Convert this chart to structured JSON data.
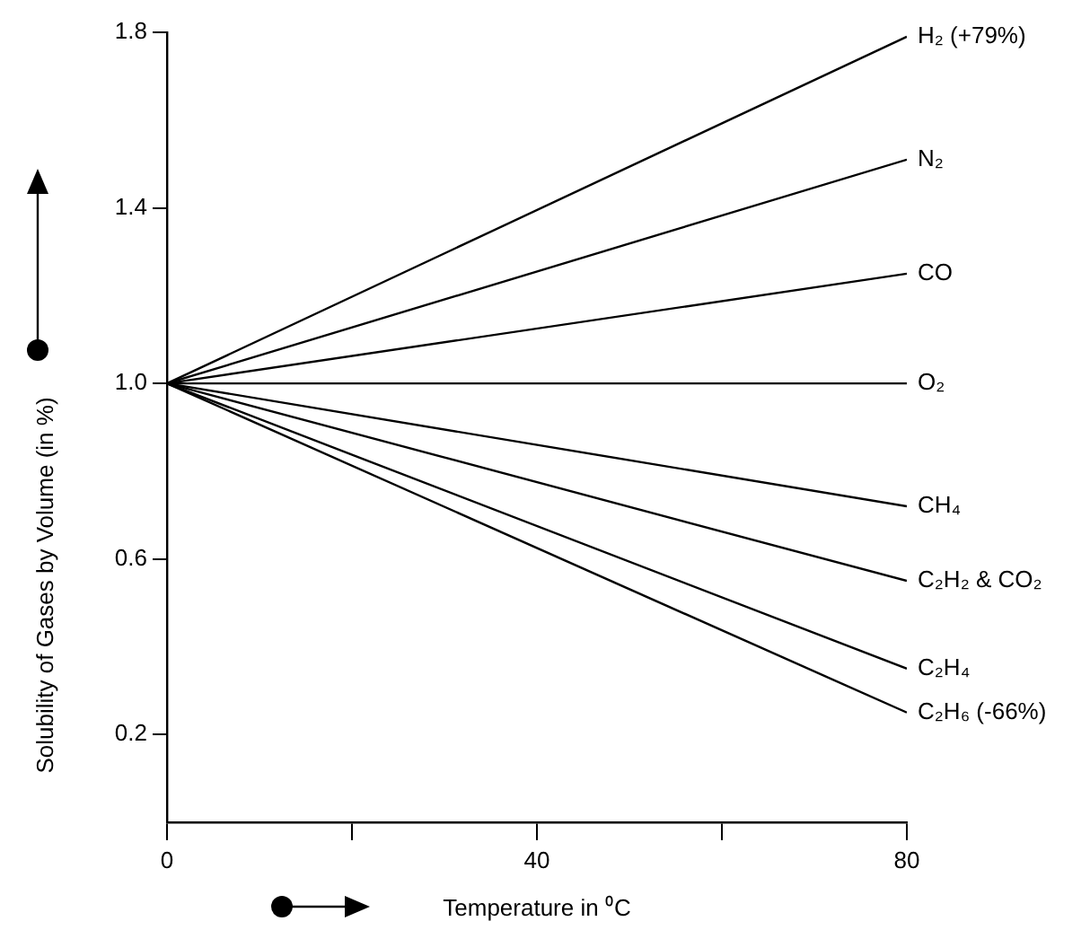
{
  "chart_data": {
    "type": "line",
    "xlabel": "Temperature in ⁰C",
    "ylabel": "Solubility of Gases by Volume (in %)",
    "x": [
      0,
      80
    ],
    "xlim": [
      0,
      80
    ],
    "ylim": [
      0,
      1.8
    ],
    "xticks": [
      0,
      {
        "value": 20,
        "label": null
      },
      40,
      {
        "value": 60,
        "label": null
      },
      80
    ],
    "yticks": [
      0.2,
      0.6,
      {
        "value": 1,
        "label": "1.0"
      },
      1.4,
      1.8
    ],
    "grid": false,
    "legend": false,
    "marker": "none",
    "line_style": "solid",
    "series": [
      {
        "name": "H₂ (+79%)",
        "color": "#000000",
        "values": [
          1,
          1.79
        ]
      },
      {
        "name": "N₂",
        "color": "#000000",
        "values": [
          1,
          1.51
        ]
      },
      {
        "name": "CO",
        "color": "#000000",
        "values": [
          1,
          1.25
        ]
      },
      {
        "name": "O₂",
        "color": "#000000",
        "values": [
          1,
          1.0
        ]
      },
      {
        "name": "CH₄",
        "color": "#000000",
        "values": [
          1,
          0.72
        ]
      },
      {
        "name": "C₂H₂ & CO₂",
        "color": "#000000",
        "values": [
          1,
          0.55
        ]
      },
      {
        "name": "C₂H₄",
        "color": "#000000",
        "values": [
          1,
          0.35
        ]
      },
      {
        "name": "C₂H₆ (-66%)",
        "color": "#000000",
        "values": [
          1,
          0.25
        ]
      }
    ]
  }
}
